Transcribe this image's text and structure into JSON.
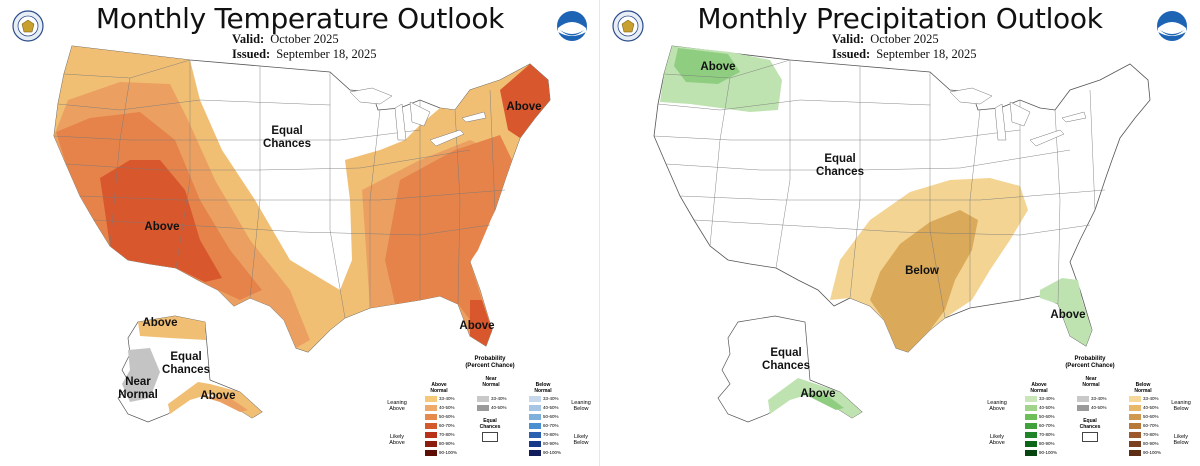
{
  "left": {
    "title": "Monthly Temperature Outlook",
    "valid_label": "Valid:",
    "valid_value": "October 2025",
    "issued_label": "Issued:",
    "issued_value": "September 18, 2025",
    "map_labels": {
      "equal_chances": "Equal",
      "equal_chances_2": "Chances",
      "above_southwest": "Above",
      "above_northeast": "Above",
      "above_florida": "Above",
      "above_alaska_north": "Above",
      "equal_alaska": "Equal",
      "equal_alaska_2": "Chances",
      "near_alaska": "Near",
      "near_alaska_2": "Normal",
      "above_alaska_south": "Above"
    },
    "legend": {
      "title": "Probability",
      "title_2": "(Percent Chance)",
      "col1_header": "Above",
      "col1_header_2": "Normal",
      "col2_header": "Near",
      "col2_header_2": "Normal",
      "col3_header": "Below",
      "col3_header_2": "Normal",
      "leaning_left": "Leaning",
      "leaning_left_2": "Above",
      "likely_left": "Likely",
      "likely_left_2": "Above",
      "leaning_right": "Leaning",
      "leaning_right_2": "Below",
      "likely_right": "Likely",
      "likely_right_2": "Below",
      "equal_chances": "Equal",
      "equal_chances_2": "Chances",
      "ranges": [
        "33-40%",
        "40-50%",
        "50-60%",
        "60-70%",
        "70-80%",
        "80-90%",
        "90-100%"
      ],
      "near_ranges": [
        "33-40%",
        "40-50%"
      ],
      "above_colors": [
        "#f5c87a",
        "#eeaa6a",
        "#e58a4a",
        "#d45a2c",
        "#b8321a",
        "#8c1c0c",
        "#5c0e04"
      ],
      "near_colors": [
        "#c8c8c8",
        "#9a9a9a"
      ],
      "below_colors": [
        "#c6d8ec",
        "#a6c4e4",
        "#7fb0dc",
        "#4a90d0",
        "#2a60b0",
        "#18388a",
        "#101c5c"
      ]
    }
  },
  "right": {
    "title": "Monthly Precipitation Outlook",
    "valid_label": "Valid:",
    "valid_value": "October 2025",
    "issued_label": "Issued:",
    "issued_value": "September 18, 2025",
    "map_labels": {
      "above_northwest": "Above",
      "equal_chances": "Equal",
      "equal_chances_2": "Chances",
      "below_south": "Below",
      "above_florida": "Above",
      "equal_alaska": "Equal",
      "equal_alaska_2": "Chances",
      "above_alaska": "Above"
    },
    "legend": {
      "title": "Probability",
      "title_2": "(Percent Chance)",
      "col1_header": "Above",
      "col1_header_2": "Normal",
      "col2_header": "Near",
      "col2_header_2": "Normal",
      "col3_header": "Below",
      "col3_header_2": "Normal",
      "leaning_left": "Leaning",
      "leaning_left_2": "Above",
      "likely_left": "Likely",
      "likely_left_2": "Above",
      "leaning_right": "Leaning",
      "leaning_right_2": "Below",
      "likely_right": "Likely",
      "likely_right_2": "Below",
      "equal_chances": "Equal",
      "equal_chances_2": "Chances",
      "ranges": [
        "33-40%",
        "40-50%",
        "50-60%",
        "60-70%",
        "70-80%",
        "80-90%",
        "90-100%"
      ],
      "near_ranges": [
        "33-40%",
        "40-50%"
      ],
      "above_colors": [
        "#c8e6b8",
        "#9fd48a",
        "#6cbf58",
        "#3fa23a",
        "#1f8428",
        "#0e6418",
        "#064410"
      ],
      "near_colors": [
        "#c8c8c8",
        "#9a9a9a"
      ],
      "below_colors": [
        "#f5d89a",
        "#e7b86a",
        "#cf9a50",
        "#b8783a",
        "#9a5a2c",
        "#7a4020",
        "#5c2c14"
      ]
    }
  },
  "colors": {
    "temp_above_33": "#f1bf74",
    "temp_above_40": "#eba062",
    "temp_above_50": "#e5834a",
    "temp_above_60": "#d9572d",
    "near_normal": "#c4c4c4",
    "precip_above_33": "#bfe3b0",
    "precip_above_40": "#8fcd80",
    "precip_below_33": "#f3d493",
    "precip_below_40": "#daa95a"
  }
}
